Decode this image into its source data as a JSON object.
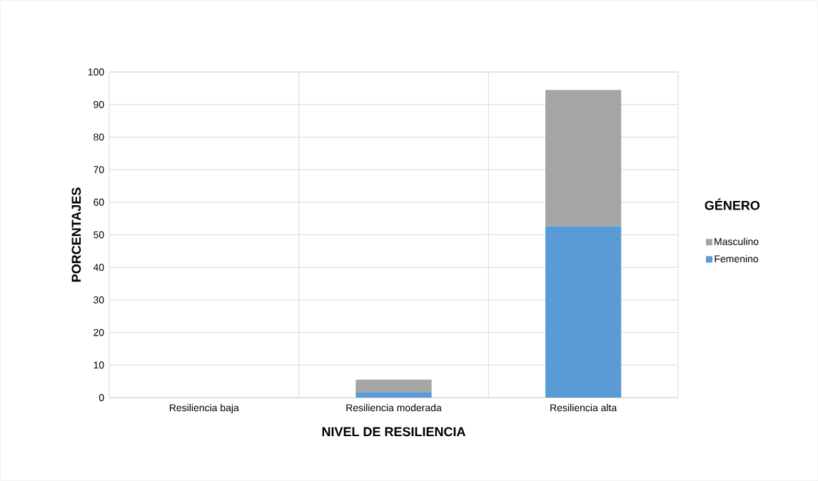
{
  "chart_data": {
    "type": "bar",
    "stacked": true,
    "categories": [
      "Resiliencia baja",
      "Resiliencia moderada",
      "Resiliencia alta"
    ],
    "series": [
      {
        "name": "Femenino",
        "color": "#5b9bd5",
        "values": [
          0,
          1.7,
          52.6
        ]
      },
      {
        "name": "Masculino",
        "color": "#a5a5a5",
        "values": [
          0,
          3.8,
          41.9
        ]
      }
    ],
    "xlabel": "NIVEL DE RESILIENCIA",
    "ylabel": "PORCENTAJES",
    "legend_title": "GÉNERO",
    "ylim": [
      0,
      100
    ],
    "yticks": [
      0,
      10,
      20,
      30,
      40,
      50,
      60,
      70,
      80,
      90,
      100
    ],
    "grid": true,
    "legend": "right"
  }
}
